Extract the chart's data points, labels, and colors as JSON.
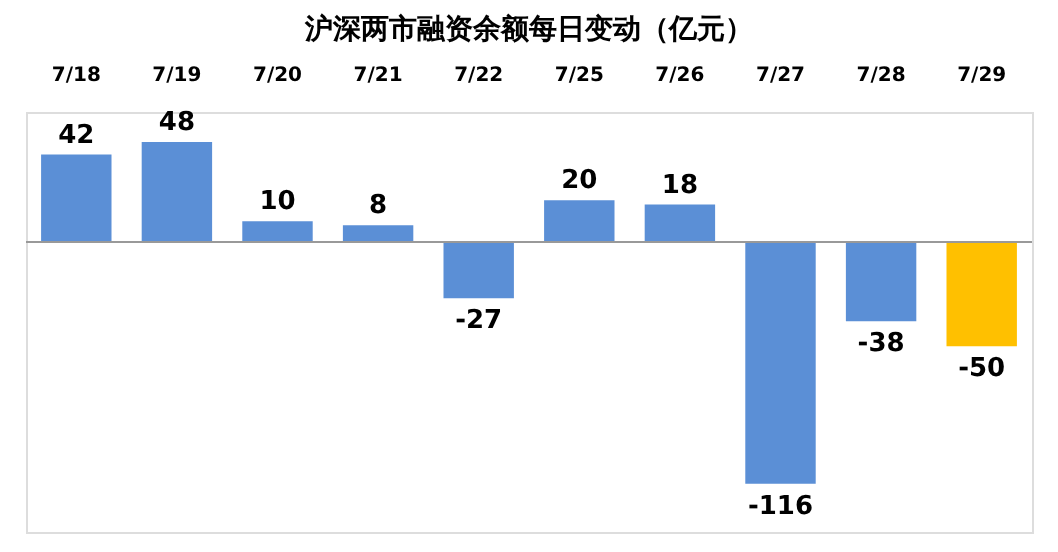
{
  "chart_data": {
    "type": "bar",
    "title": "沪深两市融资余额每日变动（亿元）",
    "categories": [
      "7/18",
      "7/19",
      "7/20",
      "7/21",
      "7/22",
      "7/25",
      "7/26",
      "7/27",
      "7/28",
      "7/29"
    ],
    "values": [
      42,
      48,
      10,
      8,
      -27,
      20,
      18,
      -116,
      -38,
      -50
    ],
    "colors": [
      "#5b8fd6",
      "#5b8fd6",
      "#5b8fd6",
      "#5b8fd6",
      "#5b8fd6",
      "#5b8fd6",
      "#5b8fd6",
      "#5b8fd6",
      "#5b8fd6",
      "#ffc000"
    ],
    "data_labels": true,
    "grid": false
  }
}
